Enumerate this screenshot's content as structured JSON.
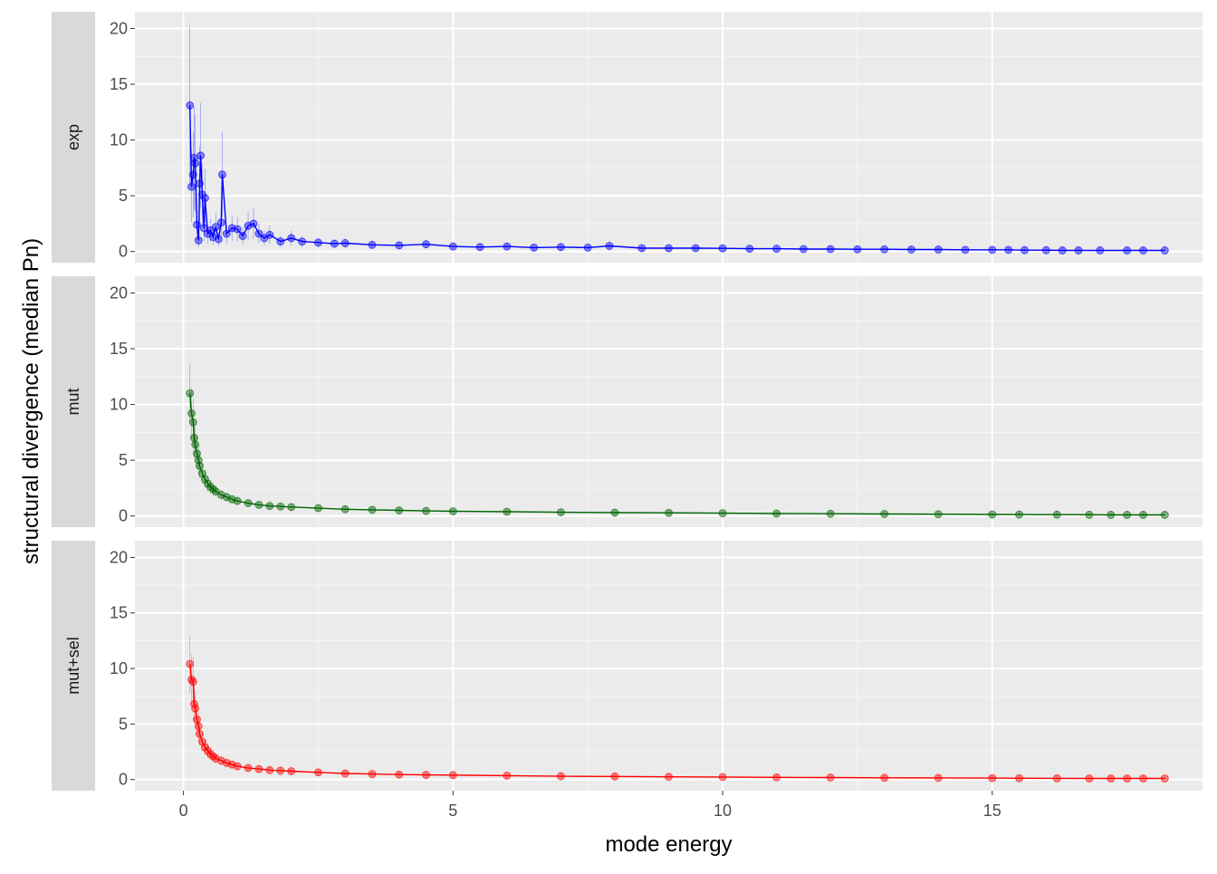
{
  "chart_data": {
    "type": "scatter",
    "xlabel": "mode energy",
    "ylabel": "structural divergence (median Pn)",
    "xlim": [
      -0.9,
      18.9
    ],
    "ylim": [
      -1.0,
      21.5
    ],
    "x_ticks": [
      0,
      5,
      10,
      15
    ],
    "x_tick_labels": [
      "0",
      "5",
      "10",
      "15"
    ],
    "y_ticks": [
      0,
      5,
      10,
      15,
      20
    ],
    "y_tick_labels": [
      "0",
      "5",
      "10",
      "15",
      "20"
    ],
    "grid": true,
    "legend": "none",
    "facets": [
      {
        "label": "exp",
        "color": "#0000ff",
        "points": [
          [
            0.12,
            13.1
          ],
          [
            0.15,
            5.8
          ],
          [
            0.18,
            6.9
          ],
          [
            0.2,
            8.4
          ],
          [
            0.22,
            7.9
          ],
          [
            0.25,
            2.4
          ],
          [
            0.28,
            1.0
          ],
          [
            0.3,
            6.1
          ],
          [
            0.32,
            8.6
          ],
          [
            0.35,
            5.1
          ],
          [
            0.38,
            2.1
          ],
          [
            0.4,
            4.8
          ],
          [
            0.45,
            1.6
          ],
          [
            0.5,
            1.9
          ],
          [
            0.55,
            1.3
          ],
          [
            0.6,
            2.2
          ],
          [
            0.65,
            1.1
          ],
          [
            0.7,
            2.6
          ],
          [
            0.72,
            6.9
          ],
          [
            0.8,
            1.6
          ],
          [
            0.9,
            2.1
          ],
          [
            1.0,
            2.0
          ],
          [
            1.1,
            1.4
          ],
          [
            1.2,
            2.3
          ],
          [
            1.3,
            2.5
          ],
          [
            1.4,
            1.6
          ],
          [
            1.5,
            1.2
          ],
          [
            1.6,
            1.5
          ],
          [
            1.8,
            0.9
          ],
          [
            2.0,
            1.2
          ],
          [
            2.2,
            0.9
          ],
          [
            2.5,
            0.8
          ],
          [
            2.8,
            0.7
          ],
          [
            3.0,
            0.75
          ],
          [
            3.5,
            0.6
          ],
          [
            4.0,
            0.55
          ],
          [
            4.5,
            0.65
          ],
          [
            5.0,
            0.45
          ],
          [
            5.5,
            0.4
          ],
          [
            6.0,
            0.45
          ],
          [
            6.5,
            0.35
          ],
          [
            7.0,
            0.4
          ],
          [
            7.5,
            0.35
          ],
          [
            7.9,
            0.5
          ],
          [
            8.5,
            0.3
          ],
          [
            9.0,
            0.3
          ],
          [
            9.5,
            0.3
          ],
          [
            10.0,
            0.28
          ],
          [
            10.5,
            0.25
          ],
          [
            11.0,
            0.25
          ],
          [
            11.5,
            0.22
          ],
          [
            12.0,
            0.22
          ],
          [
            12.5,
            0.2
          ],
          [
            13.0,
            0.2
          ],
          [
            13.5,
            0.18
          ],
          [
            14.0,
            0.18
          ],
          [
            14.5,
            0.15
          ],
          [
            15.0,
            0.15
          ],
          [
            15.3,
            0.15
          ],
          [
            15.6,
            0.12
          ],
          [
            16.0,
            0.12
          ],
          [
            16.3,
            0.1
          ],
          [
            16.6,
            0.1
          ],
          [
            17.0,
            0.1
          ],
          [
            17.5,
            0.1
          ],
          [
            17.8,
            0.1
          ],
          [
            18.2,
            0.1
          ]
        ]
      },
      {
        "label": "mut",
        "color": "#006400",
        "points": [
          [
            0.12,
            11.0
          ],
          [
            0.15,
            9.2
          ],
          [
            0.18,
            8.4
          ],
          [
            0.2,
            7.0
          ],
          [
            0.22,
            6.4
          ],
          [
            0.25,
            5.6
          ],
          [
            0.28,
            5.0
          ],
          [
            0.3,
            4.5
          ],
          [
            0.35,
            3.8
          ],
          [
            0.4,
            3.3
          ],
          [
            0.45,
            2.9
          ],
          [
            0.5,
            2.6
          ],
          [
            0.55,
            2.4
          ],
          [
            0.6,
            2.2
          ],
          [
            0.7,
            1.9
          ],
          [
            0.8,
            1.7
          ],
          [
            0.9,
            1.5
          ],
          [
            1.0,
            1.35
          ],
          [
            1.2,
            1.15
          ],
          [
            1.4,
            1.0
          ],
          [
            1.6,
            0.9
          ],
          [
            1.8,
            0.85
          ],
          [
            2.0,
            0.8
          ],
          [
            2.5,
            0.7
          ],
          [
            3.0,
            0.6
          ],
          [
            3.5,
            0.55
          ],
          [
            4.0,
            0.5
          ],
          [
            4.5,
            0.45
          ],
          [
            5.0,
            0.42
          ],
          [
            6.0,
            0.38
          ],
          [
            7.0,
            0.33
          ],
          [
            8.0,
            0.3
          ],
          [
            9.0,
            0.28
          ],
          [
            10.0,
            0.25
          ],
          [
            11.0,
            0.22
          ],
          [
            12.0,
            0.2
          ],
          [
            13.0,
            0.18
          ],
          [
            14.0,
            0.16
          ],
          [
            15.0,
            0.14
          ],
          [
            15.5,
            0.13
          ],
          [
            16.2,
            0.12
          ],
          [
            16.8,
            0.11
          ],
          [
            17.2,
            0.1
          ],
          [
            17.5,
            0.1
          ],
          [
            17.8,
            0.1
          ],
          [
            18.2,
            0.1
          ]
        ]
      },
      {
        "label": "mut+sel",
        "color": "#ff0000",
        "points": [
          [
            0.12,
            10.4
          ],
          [
            0.15,
            9.0
          ],
          [
            0.18,
            8.8
          ],
          [
            0.2,
            6.8
          ],
          [
            0.22,
            6.4
          ],
          [
            0.25,
            5.4
          ],
          [
            0.28,
            4.8
          ],
          [
            0.3,
            4.1
          ],
          [
            0.35,
            3.4
          ],
          [
            0.4,
            2.9
          ],
          [
            0.45,
            2.6
          ],
          [
            0.5,
            2.3
          ],
          [
            0.55,
            2.1
          ],
          [
            0.6,
            1.9
          ],
          [
            0.7,
            1.7
          ],
          [
            0.8,
            1.5
          ],
          [
            0.9,
            1.35
          ],
          [
            1.0,
            1.2
          ],
          [
            1.2,
            1.05
          ],
          [
            1.4,
            0.95
          ],
          [
            1.6,
            0.85
          ],
          [
            1.8,
            0.8
          ],
          [
            2.0,
            0.75
          ],
          [
            2.5,
            0.65
          ],
          [
            3.0,
            0.55
          ],
          [
            3.5,
            0.5
          ],
          [
            4.0,
            0.45
          ],
          [
            4.5,
            0.42
          ],
          [
            5.0,
            0.4
          ],
          [
            6.0,
            0.35
          ],
          [
            7.0,
            0.3
          ],
          [
            8.0,
            0.28
          ],
          [
            9.0,
            0.25
          ],
          [
            10.0,
            0.23
          ],
          [
            11.0,
            0.2
          ],
          [
            12.0,
            0.18
          ],
          [
            13.0,
            0.16
          ],
          [
            14.0,
            0.15
          ],
          [
            15.0,
            0.13
          ],
          [
            15.5,
            0.12
          ],
          [
            16.2,
            0.11
          ],
          [
            16.8,
            0.1
          ],
          [
            17.2,
            0.1
          ],
          [
            17.5,
            0.1
          ],
          [
            17.8,
            0.1
          ],
          [
            18.2,
            0.1
          ]
        ]
      }
    ]
  }
}
